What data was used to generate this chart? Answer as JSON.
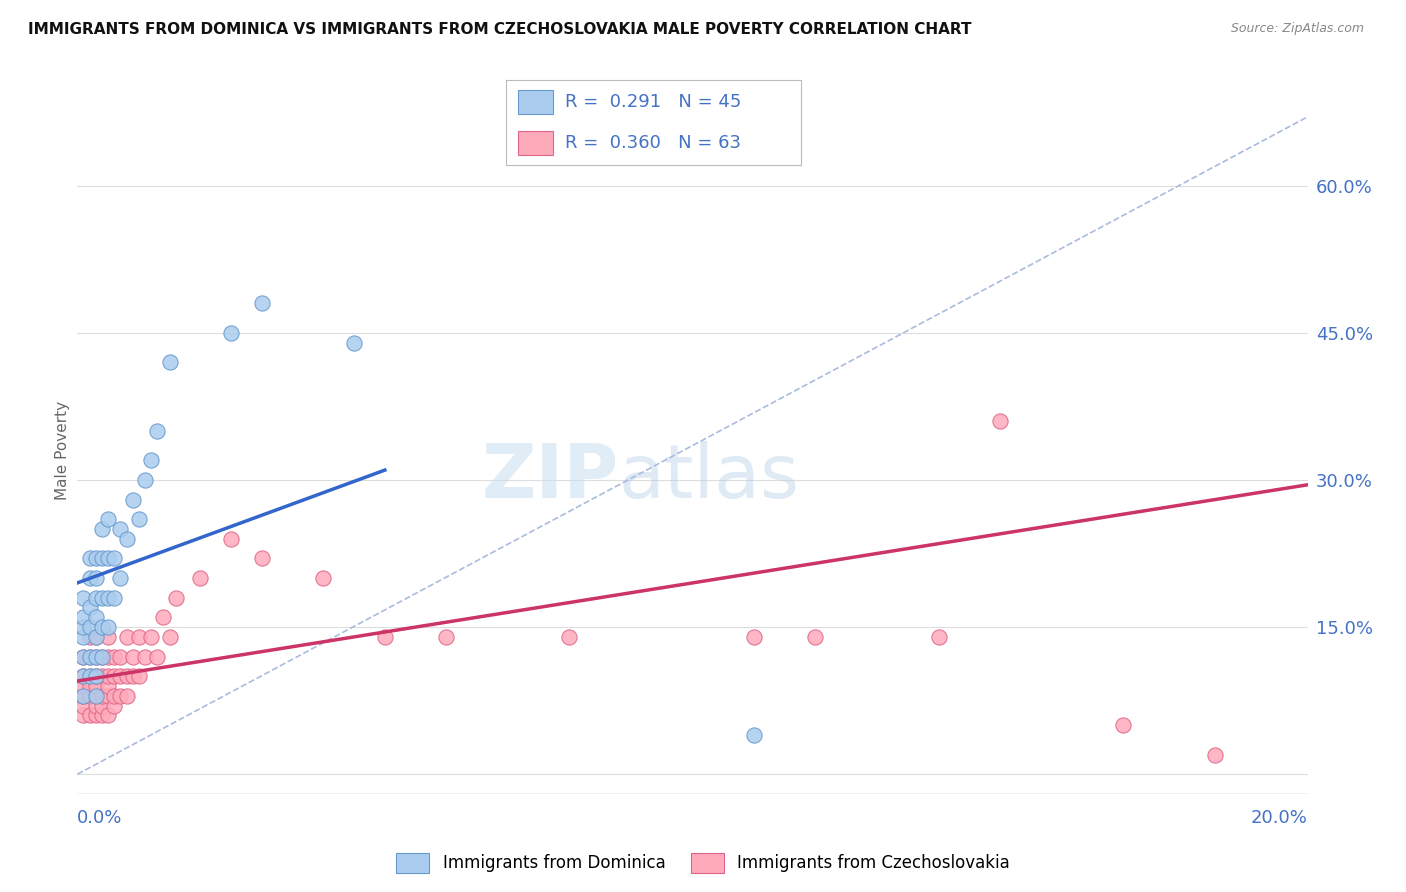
{
  "title": "IMMIGRANTS FROM DOMINICA VS IMMIGRANTS FROM CZECHOSLOVAKIA MALE POVERTY CORRELATION CHART",
  "source": "Source: ZipAtlas.com",
  "ylabel": "Male Poverty",
  "y_ticks": [
    0.0,
    0.15,
    0.3,
    0.45,
    0.6
  ],
  "y_tick_labels": [
    "",
    "15.0%",
    "30.0%",
    "45.0%",
    "60.0%"
  ],
  "x_lim": [
    0.0,
    0.2
  ],
  "y_lim": [
    -0.02,
    0.68
  ],
  "series": [
    {
      "label": "Immigrants from Dominica",
      "R": 0.291,
      "N": 45,
      "trend_color": "#3366cc",
      "marker_fill": "#aaccee",
      "marker_edge": "#6699cc",
      "points_x": [
        0.001,
        0.001,
        0.001,
        0.001,
        0.001,
        0.001,
        0.001,
        0.002,
        0.002,
        0.002,
        0.002,
        0.002,
        0.002,
        0.003,
        0.003,
        0.003,
        0.003,
        0.003,
        0.003,
        0.003,
        0.003,
        0.004,
        0.004,
        0.004,
        0.004,
        0.004,
        0.005,
        0.005,
        0.005,
        0.005,
        0.006,
        0.006,
        0.007,
        0.007,
        0.008,
        0.009,
        0.01,
        0.011,
        0.012,
        0.013,
        0.015,
        0.025,
        0.03,
        0.045,
        0.11
      ],
      "points_y": [
        0.08,
        0.1,
        0.12,
        0.14,
        0.15,
        0.16,
        0.18,
        0.1,
        0.12,
        0.15,
        0.17,
        0.2,
        0.22,
        0.08,
        0.1,
        0.12,
        0.14,
        0.16,
        0.18,
        0.2,
        0.22,
        0.12,
        0.15,
        0.18,
        0.22,
        0.25,
        0.15,
        0.18,
        0.22,
        0.26,
        0.18,
        0.22,
        0.2,
        0.25,
        0.24,
        0.28,
        0.26,
        0.3,
        0.32,
        0.35,
        0.42,
        0.45,
        0.48,
        0.44,
        0.04
      ],
      "trend_x": [
        0.0,
        0.05
      ],
      "trend_y": [
        0.195,
        0.31
      ]
    },
    {
      "label": "Immigrants from Czechoslovakia",
      "R": 0.36,
      "N": 63,
      "trend_color": "#cc3366",
      "marker_fill": "#ffaabb",
      "marker_edge": "#dd6688",
      "points_x": [
        0.001,
        0.001,
        0.001,
        0.001,
        0.001,
        0.001,
        0.002,
        0.002,
        0.002,
        0.002,
        0.002,
        0.002,
        0.003,
        0.003,
        0.003,
        0.003,
        0.003,
        0.003,
        0.003,
        0.004,
        0.004,
        0.004,
        0.004,
        0.004,
        0.005,
        0.005,
        0.005,
        0.005,
        0.005,
        0.005,
        0.006,
        0.006,
        0.006,
        0.006,
        0.007,
        0.007,
        0.007,
        0.008,
        0.008,
        0.008,
        0.009,
        0.009,
        0.01,
        0.01,
        0.011,
        0.012,
        0.013,
        0.014,
        0.015,
        0.016,
        0.02,
        0.025,
        0.03,
        0.04,
        0.05,
        0.06,
        0.08,
        0.11,
        0.12,
        0.14,
        0.15,
        0.17,
        0.185
      ],
      "points_y": [
        0.06,
        0.07,
        0.08,
        0.09,
        0.1,
        0.12,
        0.06,
        0.08,
        0.09,
        0.1,
        0.12,
        0.14,
        0.06,
        0.07,
        0.08,
        0.09,
        0.1,
        0.12,
        0.14,
        0.06,
        0.07,
        0.08,
        0.1,
        0.12,
        0.06,
        0.08,
        0.09,
        0.1,
        0.12,
        0.14,
        0.07,
        0.08,
        0.1,
        0.12,
        0.08,
        0.1,
        0.12,
        0.08,
        0.1,
        0.14,
        0.1,
        0.12,
        0.1,
        0.14,
        0.12,
        0.14,
        0.12,
        0.16,
        0.14,
        0.18,
        0.2,
        0.24,
        0.22,
        0.2,
        0.14,
        0.14,
        0.14,
        0.14,
        0.14,
        0.14,
        0.36,
        0.05,
        0.02
      ],
      "trend_x": [
        0.0,
        0.2
      ],
      "trend_y": [
        0.095,
        0.295
      ]
    }
  ],
  "watermark_zip": "ZIP",
  "watermark_atlas": "atlas",
  "dashed_line_x": [
    0.0,
    0.2
  ],
  "dashed_line_y": [
    0.0,
    0.67
  ],
  "title_fontsize": 11,
  "source_fontsize": 9,
  "background_color": "#ffffff",
  "grid_color": "#dddddd",
  "tick_label_color": "#4472c4"
}
